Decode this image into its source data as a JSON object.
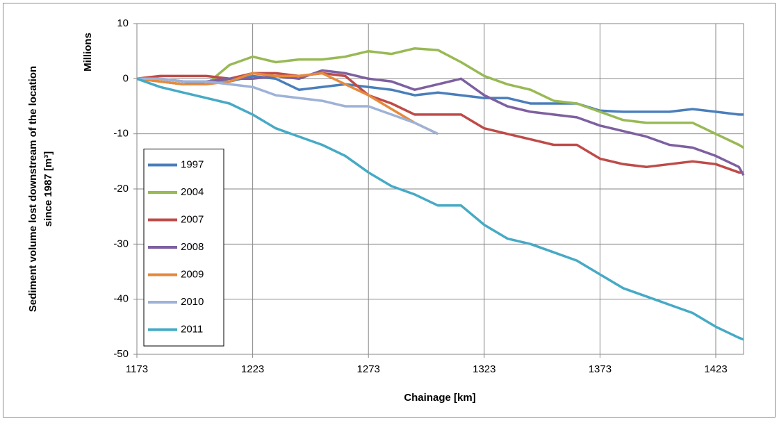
{
  "chart_data": {
    "type": "line",
    "x_label": "Chainage [km]",
    "y_label": [
      "Sediment volume lost downstream of the location",
      "since 1987 [m³]"
    ],
    "y_unit_label": "Millions",
    "x": [
      1173,
      1183,
      1193,
      1203,
      1213,
      1223,
      1233,
      1243,
      1253,
      1263,
      1273,
      1283,
      1293,
      1303,
      1313,
      1323,
      1333,
      1343,
      1353,
      1363,
      1373,
      1383,
      1393,
      1403,
      1413,
      1423,
      1433,
      1435
    ],
    "series": [
      {
        "name": "1997",
        "color": "#4a7ebb",
        "values": [
          0,
          -0.5,
          -1,
          -0.5,
          -0.5,
          0.5,
          0,
          -2,
          -1.5,
          -1,
          -1.5,
          -2,
          -3,
          -2.5,
          -3,
          -3.5,
          -3.5,
          -4.5,
          -4.5,
          -4.5,
          -5.8,
          -6,
          -6,
          -6,
          -5.5,
          -6,
          -6.5,
          -6.5
        ]
      },
      {
        "name": "2004",
        "color": "#98b954",
        "values": [
          0,
          -0.5,
          -1,
          -1,
          2.5,
          4,
          3,
          3.5,
          3.5,
          4,
          5,
          4.5,
          5.5,
          5.2,
          3,
          0.5,
          -1,
          -2,
          -4,
          -4.5,
          -6,
          -7.5,
          -8,
          -8,
          -8,
          -10,
          -12,
          -12.5
        ]
      },
      {
        "name": "2007",
        "color": "#be4b48",
        "values": [
          0,
          0.5,
          0.5,
          0.5,
          0,
          1,
          1,
          0.5,
          1,
          0.5,
          -3,
          -4.5,
          -6.5,
          -6.5,
          -6.5,
          -9,
          -10,
          -11,
          -12,
          -12,
          -14.5,
          -15.5,
          -16,
          -15.5,
          -15,
          -15.5,
          -17,
          -17
        ]
      },
      {
        "name": "2008",
        "color": "#7d60a0",
        "values": [
          0,
          0,
          -0.5,
          -0.5,
          0,
          0,
          0.5,
          0,
          1.5,
          1,
          0,
          -0.5,
          -2,
          -1,
          0,
          -3,
          -5,
          -6,
          -6.5,
          -7,
          -8.5,
          -9.5,
          -10.5,
          -12,
          -12.5,
          -14,
          -16,
          -17.5
        ]
      },
      {
        "name": "2009",
        "color": "#e68a3c",
        "values": [
          0,
          -0.5,
          -1,
          -1,
          -0.5,
          1,
          0.5,
          0.5,
          1,
          -1,
          -3,
          -5.5,
          -8,
          -10,
          null,
          null,
          null,
          null,
          null,
          null,
          null,
          null,
          null,
          null,
          null,
          null,
          null,
          null
        ]
      },
      {
        "name": "2010",
        "color": "#9eb2d8",
        "values": [
          0,
          0,
          -0.5,
          -0.5,
          -1,
          -1.5,
          -3,
          -3.5,
          -4,
          -5,
          -5,
          -6.5,
          -8,
          -10,
          null,
          null,
          null,
          null,
          null,
          null,
          null,
          null,
          null,
          null,
          null,
          null,
          null,
          null
        ]
      },
      {
        "name": "2011",
        "color": "#46aac5",
        "values": [
          0,
          -1.5,
          -2.5,
          -3.5,
          -4.5,
          -6.5,
          -9,
          -10.5,
          -12,
          -14,
          -17,
          -19.5,
          -21,
          -23,
          -23,
          -26.5,
          -29,
          -30,
          -31.5,
          -33,
          -35.5,
          -38,
          -39.5,
          -41,
          -42.5,
          -45,
          -47,
          -47.3
        ]
      }
    ],
    "xlim": [
      1173,
      1435
    ],
    "xticks": [
      1173,
      1223,
      1273,
      1323,
      1373,
      1423
    ],
    "ylim": [
      -50,
      10
    ],
    "yticks": [
      -50,
      -40,
      -30,
      -20,
      -10,
      0,
      10
    ],
    "grid": true,
    "legend": "lower left"
  }
}
